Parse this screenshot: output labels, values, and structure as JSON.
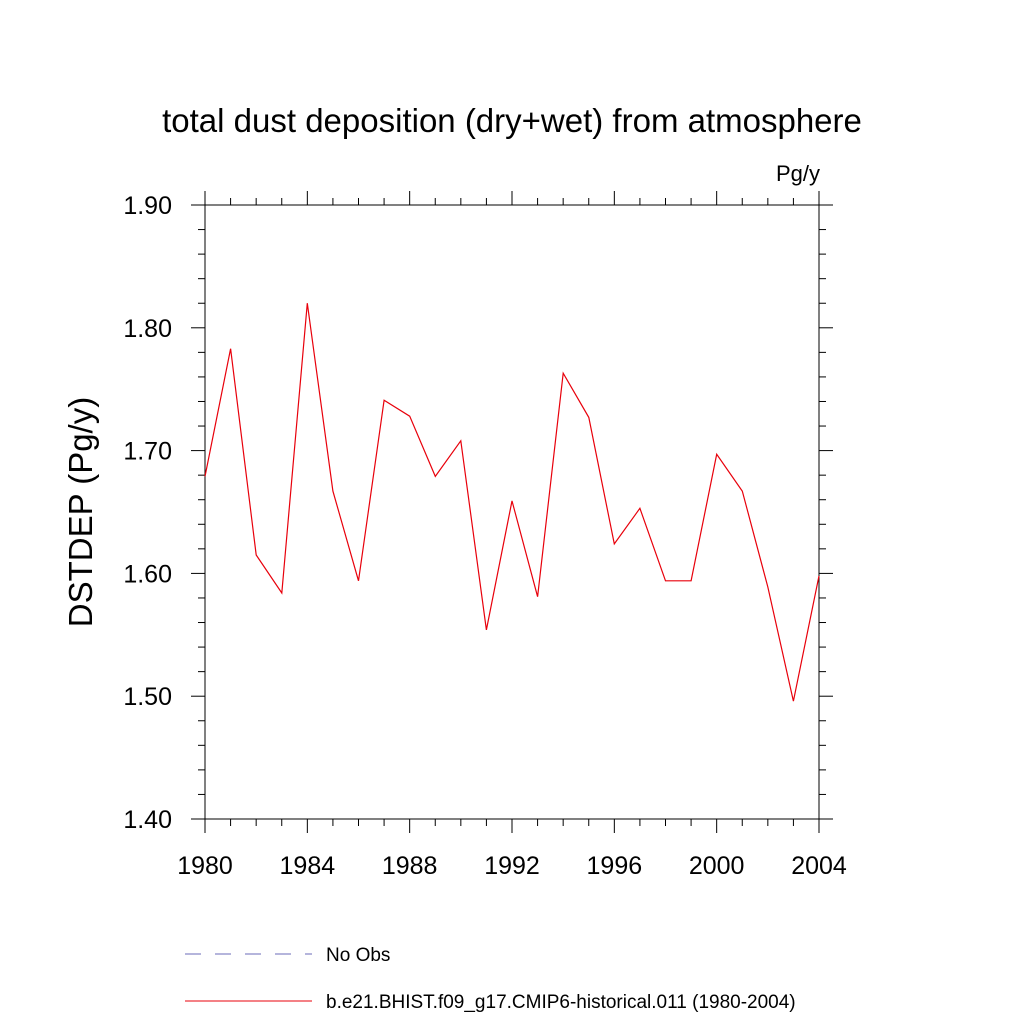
{
  "chart_data": {
    "type": "line",
    "title": "total dust deposition (dry+wet) from atmosphere",
    "units": "Pg/y",
    "xlabel": "",
    "ylabel": "DSTDEP  (Pg/y)",
    "xlim": [
      1980,
      2004
    ],
    "ylim": [
      1.4,
      1.9
    ],
    "x_ticks": [
      "1980",
      "1984",
      "1988",
      "1992",
      "1996",
      "2000",
      "2004"
    ],
    "y_ticks": [
      "1.40",
      "1.50",
      "1.60",
      "1.70",
      "1.80",
      "1.90"
    ],
    "x": [
      1980,
      1981,
      1982,
      1983,
      1984,
      1985,
      1986,
      1987,
      1988,
      1989,
      1990,
      1991,
      1992,
      1993,
      1994,
      1995,
      1996,
      1997,
      1998,
      1999,
      2000,
      2001,
      2002,
      2003,
      2004
    ],
    "series": [
      {
        "name": "b.e21.BHIST.f09_g17.CMIP6-historical.011 (1980-2004)",
        "color": "#e8000b",
        "style": "solid",
        "values": [
          1.679,
          1.783,
          1.615,
          1.584,
          1.82,
          1.667,
          1.594,
          1.741,
          1.728,
          1.679,
          1.708,
          1.554,
          1.659,
          1.581,
          1.763,
          1.727,
          1.624,
          1.653,
          1.594,
          1.594,
          1.697,
          1.667,
          1.589,
          1.496,
          1.598
        ]
      }
    ],
    "legend": [
      {
        "label": "No Obs",
        "color": "#6b6bb8",
        "style": "dashed"
      },
      {
        "label": "b.e21.BHIST.f09_g17.CMIP6-historical.011 (1980-2004)",
        "color": "#e8000b",
        "style": "solid"
      }
    ],
    "legend_position": "bottom",
    "grid": false
  }
}
